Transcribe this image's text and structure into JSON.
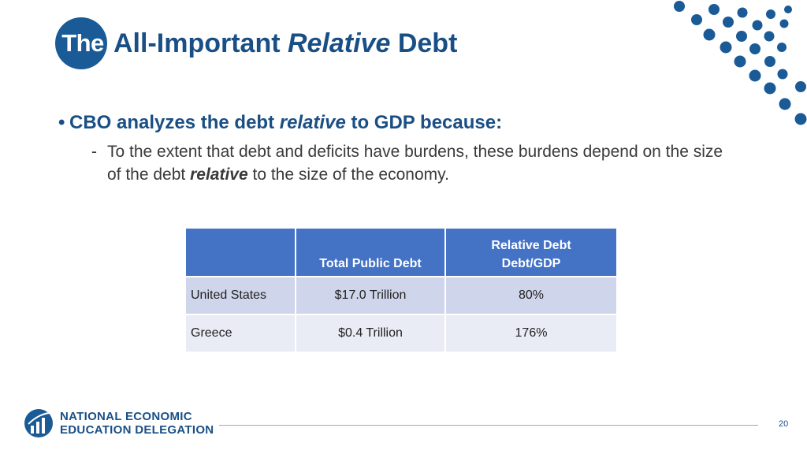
{
  "title": {
    "badge": "The",
    "part1": "All-Important ",
    "emphasis": "Relative",
    "part2": " Debt"
  },
  "bullet": {
    "part1": "CBO analyzes the debt ",
    "emphasis": "relative",
    "part2": " to GDP because:"
  },
  "sub": {
    "dash": "-",
    "part1": "To the extent that debt and deficits have burdens, these burdens depend on the size of the debt ",
    "emphasis": "relative",
    "part2": " to the size of the economy."
  },
  "table": {
    "headers": [
      "",
      "Total Public Debt",
      "Relative Debt",
      "Debt/GDP"
    ],
    "rows": [
      {
        "country": "United States",
        "debt": "$17.0 Trillion",
        "ratio": "80%"
      },
      {
        "country": "Greece",
        "debt": "$0.4 Trillion",
        "ratio": "176%"
      }
    ]
  },
  "footer": {
    "org_line1": "NATIONAL ECONOMIC",
    "org_line2": "EDUCATION DELEGATION",
    "page_number": "20"
  },
  "colors": {
    "brand_blue": "#1a5a96",
    "header_blue": "#4472c4",
    "row_dark": "#cfd5ea",
    "row_light": "#e9ebf5"
  }
}
